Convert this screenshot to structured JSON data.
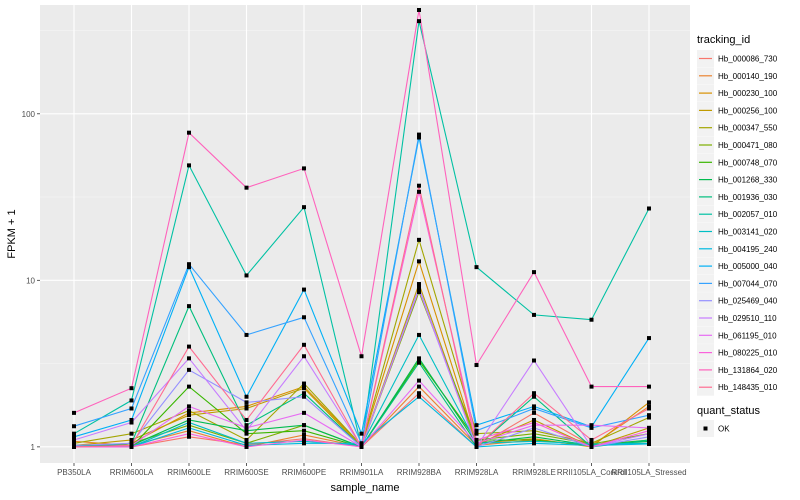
{
  "chart_data": {
    "type": "line",
    "title": "",
    "xlabel": "sample_name",
    "ylabel": "FPKM + 1",
    "y_scale": "log10",
    "ylim": [
      0.8,
      450
    ],
    "y_ticks": [
      1,
      10,
      100
    ],
    "y_tick_labels": [
      "1",
      "10",
      "100"
    ],
    "grid": true,
    "categories": [
      "PB350LA",
      "RRIM600LA",
      "RRIM600LE",
      "RRIM600SE",
      "RRIM600PE",
      "RRIM901LA",
      "RRIM928BA",
      "RRIM928LA",
      "RRIM928LE",
      "RRII105LA_Control",
      "RRII105LA_Stressed"
    ],
    "legend": {
      "placement": "right",
      "color_title": "tracking_id",
      "shape_title": "quant_status",
      "shape_entries": [
        {
          "label": "OK",
          "shape": "square"
        }
      ]
    },
    "series": [
      {
        "name": "Hb_000086_730",
        "color": "#F8766D",
        "values": [
          1.02,
          1.0,
          1.15,
          1.03,
          1.12,
          1.0,
          2.1,
          1.0,
          1.6,
          1.02,
          1.05
        ]
      },
      {
        "name": "Hb_000140_190",
        "color": "#EA8331",
        "values": [
          1.08,
          1.02,
          1.25,
          1.0,
          1.18,
          1.0,
          2.3,
          1.02,
          1.1,
          1.02,
          1.75
        ]
      },
      {
        "name": "Hb_000230_100",
        "color": "#D89000",
        "values": [
          1.0,
          1.05,
          1.6,
          1.75,
          2.3,
          1.02,
          13.0,
          1.05,
          1.12,
          1.0,
          1.85
        ]
      },
      {
        "name": "Hb_000256_100",
        "color": "#C09B00",
        "values": [
          1.02,
          1.1,
          1.55,
          1.7,
          2.25,
          1.0,
          9.5,
          1.03,
          1.45,
          1.0,
          1.3
        ]
      },
      {
        "name": "Hb_000347_550",
        "color": "#A3A500",
        "values": [
          1.05,
          1.2,
          1.65,
          1.1,
          2.4,
          1.02,
          17.5,
          1.2,
          1.25,
          1.05,
          1.5
        ]
      },
      {
        "name": "Hb_000471_080",
        "color": "#7CAE00",
        "values": [
          1.0,
          1.05,
          1.35,
          1.05,
          1.35,
          1.0,
          8.5,
          1.1,
          1.2,
          1.04,
          1.2
        ]
      },
      {
        "name": "Hb_000748_070",
        "color": "#39B600",
        "values": [
          1.0,
          1.0,
          2.3,
          1.2,
          1.25,
          1.0,
          3.3,
          1.1,
          1.1,
          1.02,
          1.1
        ]
      },
      {
        "name": "Hb_001268_330",
        "color": "#00BB4E",
        "values": [
          1.02,
          1.02,
          1.45,
          1.25,
          1.35,
          1.0,
          3.4,
          1.05,
          1.15,
          1.02,
          1.08
        ]
      },
      {
        "name": "Hb_001936_030",
        "color": "#00BF7D",
        "values": [
          1.0,
          1.05,
          7.0,
          1.35,
          2.1,
          1.0,
          3.2,
          1.0,
          2.0,
          1.0,
          1.1
        ]
      },
      {
        "name": "Hb_002057_010",
        "color": "#00C1A3",
        "values": [
          1.2,
          1.9,
          49.0,
          10.7,
          27.5,
          1.0,
          360.0,
          12.0,
          6.2,
          5.8,
          27.0
        ]
      },
      {
        "name": "Hb_003141_020",
        "color": "#00BFC4",
        "values": [
          1.0,
          1.0,
          1.4,
          1.05,
          1.08,
          1.02,
          4.7,
          1.05,
          1.08,
          1.04,
          1.05
        ]
      },
      {
        "name": "Hb_004195_240",
        "color": "#00BAE0",
        "values": [
          1.0,
          1.0,
          1.3,
          1.02,
          1.05,
          1.05,
          2.0,
          1.0,
          1.05,
          1.02,
          1.04
        ]
      },
      {
        "name": "Hb_005000_040",
        "color": "#00B0F6",
        "values": [
          1.15,
          1.45,
          12.0,
          2.0,
          8.8,
          1.2,
          72.0,
          1.35,
          1.75,
          1.32,
          4.5
        ]
      },
      {
        "name": "Hb_007044_070",
        "color": "#35A2FF",
        "values": [
          1.33,
          1.7,
          12.5,
          4.7,
          6.0,
          1.05,
          75.0,
          1.25,
          1.7,
          1.3,
          1.55
        ]
      },
      {
        "name": "Hb_025469_040",
        "color": "#9590FF",
        "values": [
          1.02,
          1.05,
          2.9,
          1.85,
          2.0,
          1.0,
          9.0,
          1.0,
          1.3,
          1.0,
          1.15
        ]
      },
      {
        "name": "Hb_029510_110",
        "color": "#C77CFF",
        "values": [
          1.1,
          1.4,
          3.4,
          1.25,
          3.5,
          1.0,
          8.8,
          1.0,
          3.3,
          1.0,
          1.2
        ]
      },
      {
        "name": "Hb_061195_010",
        "color": "#E76BF3",
        "values": [
          1.0,
          1.02,
          1.75,
          1.3,
          1.6,
          1.0,
          2.5,
          1.05,
          1.35,
          1.35,
          1.3
        ]
      },
      {
        "name": "Hb_080225_010",
        "color": "#FA62DB",
        "values": [
          1.0,
          1.0,
          1.2,
          1.0,
          1.1,
          1.0,
          34.0,
          1.1,
          1.4,
          1.0,
          1.25
        ]
      },
      {
        "name": "Hb_131864_020",
        "color": "#FF62BC",
        "values": [
          1.6,
          2.25,
          77.0,
          36.0,
          47.0,
          3.5,
          420.0,
          3.1,
          11.2,
          2.3,
          2.3
        ]
      },
      {
        "name": "Hb_148435_010",
        "color": "#FF6C91",
        "values": [
          1.0,
          1.02,
          4.0,
          1.45,
          4.1,
          1.0,
          37.0,
          1.0,
          2.1,
          1.1,
          1.7
        ]
      }
    ]
  }
}
